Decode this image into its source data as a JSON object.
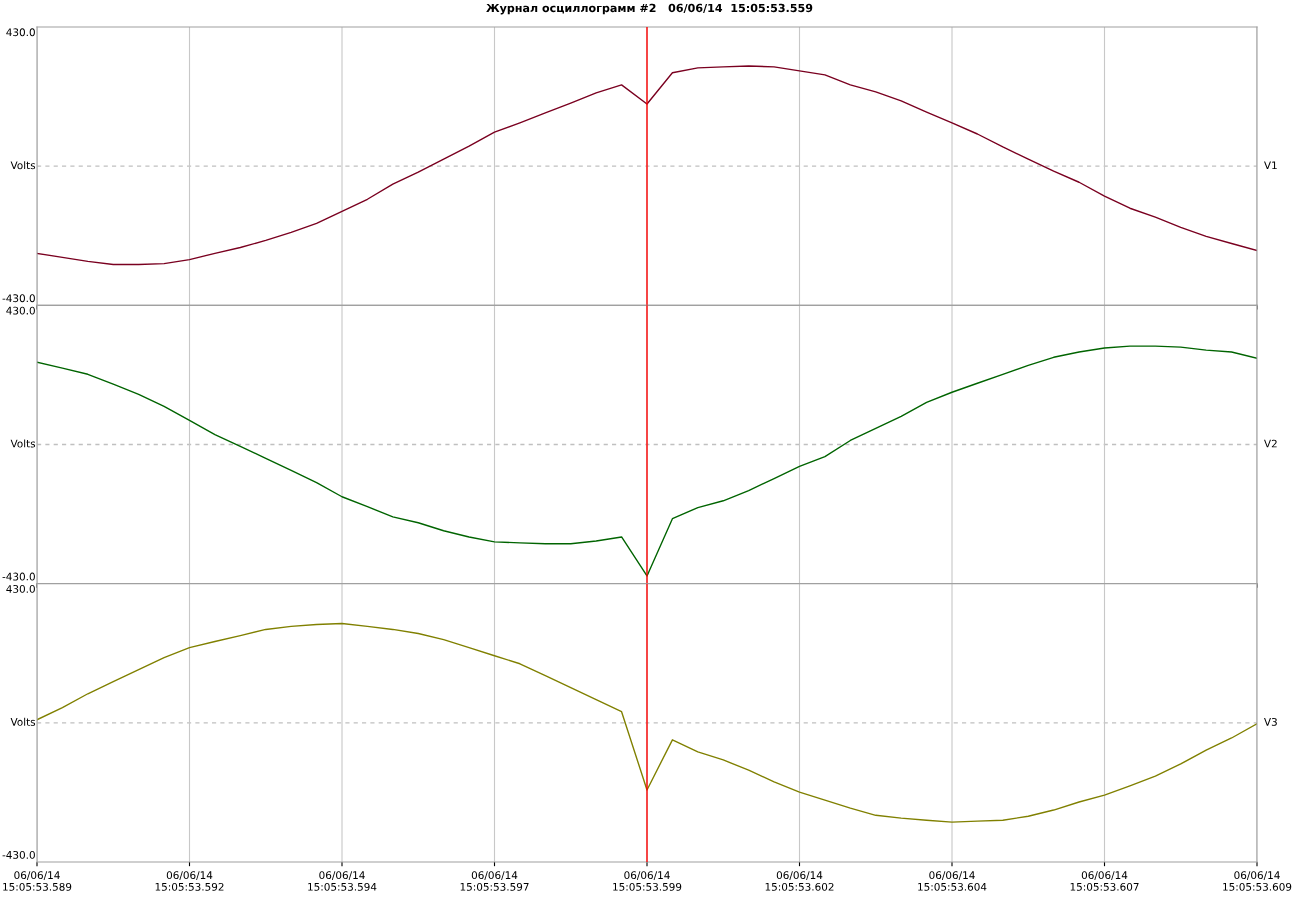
{
  "chart_data": [
    {
      "type": "line",
      "title": "Журнал осциллограмм #2   06/06/14  15:05:53.559",
      "categories": [
        "06/06/14\n15:05:53.589",
        null,
        null,
        null,
        null,
        null,
        "06/06/14\n15:05:53.592",
        null,
        null,
        null,
        null,
        null,
        "06/06/14\n15:05:53.594",
        null,
        null,
        null,
        null,
        null,
        "06/06/14\n15:05:53.597",
        null,
        null,
        null,
        null,
        null,
        "06/06/14\n15:05:53.599",
        null,
        null,
        null,
        null,
        null,
        "06/06/14\n15:05:53.602",
        null,
        null,
        null,
        null,
        null,
        "06/06/14\n15:05:53.604",
        null,
        null,
        null,
        null,
        null,
        "06/06/14\n15:05:53.607",
        null,
        null,
        null,
        null,
        null,
        "06/06/14\n15:05:53.609"
      ],
      "series": [
        {
          "name": "V1",
          "color": "#7a0020",
          "values": [
            -282,
            -295,
            -308,
            -318,
            -318,
            -315,
            -302,
            -282,
            -263,
            -240,
            -214,
            -185,
            -146,
            -107,
            -58,
            -19,
            23,
            65,
            110,
            140,
            172,
            204,
            237,
            263,
            201,
            302,
            318,
            321,
            324,
            321,
            308,
            295,
            263,
            240,
            211,
            175,
            140,
            104,
            62,
            23,
            -16,
            -52,
            -97,
            -136,
            -165,
            -198,
            -227,
            -250,
            -273
          ]
        }
      ],
      "ylim": [
        -450,
        450
      ],
      "yticks": [
        {
          "value": -430,
          "label": "-430.0"
        },
        {
          "value": 0,
          "label": "Volts"
        },
        {
          "value": 430,
          "label": "430.0"
        }
      ],
      "grid": "x",
      "tick_labels": "y",
      "ref_lines": [
        {
          "axis": "y",
          "value": 0,
          "line_style": "dashed",
          "color": "#c0c0c0"
        },
        {
          "axis": "x",
          "value": "06/06/14\n15:05:53.599",
          "color": "#ff0000"
        }
      ]
    },
    {
      "type": "line",
      "categories": [
        "06/06/14\n15:05:53.589",
        null,
        null,
        null,
        null,
        null,
        "06/06/14\n15:05:53.592",
        null,
        null,
        null,
        null,
        null,
        "06/06/14\n15:05:53.594",
        null,
        null,
        null,
        null,
        null,
        "06/06/14\n15:05:53.597",
        null,
        null,
        null,
        null,
        null,
        "06/06/14\n15:05:53.599",
        null,
        null,
        null,
        null,
        null,
        "06/06/14\n15:05:53.602",
        null,
        null,
        null,
        null,
        null,
        "06/06/14\n15:05:53.604",
        null,
        null,
        null,
        null,
        null,
        "06/06/14\n15:05:53.607",
        null,
        null,
        null,
        null,
        null,
        "06/06/14\n15:05:53.609"
      ],
      "series": [
        {
          "name": "V2",
          "color": "#006400",
          "values": [
            266,
            247,
            227,
            195,
            162,
            123,
            78,
            32,
            -6,
            -45,
            -84,
            -123,
            -169,
            -201,
            -234,
            -253,
            -279,
            -299,
            -315,
            -318,
            -321,
            -321,
            -312,
            -299,
            -425,
            -240,
            -204,
            -182,
            -149,
            -110,
            -71,
            -39,
            13,
            52,
            91,
            136,
            169,
            198,
            227,
            256,
            282,
            299,
            312,
            318,
            318,
            315,
            305,
            299,
            279
          ]
        }
      ],
      "ylim": [
        -450,
        450
      ],
      "yticks": [
        {
          "value": -430,
          "label": "-430.0"
        },
        {
          "value": 0,
          "label": "Volts"
        },
        {
          "value": 430,
          "label": "430.0"
        }
      ],
      "grid": "x",
      "tick_labels": "y",
      "ref_lines": [
        {
          "axis": "y",
          "value": 0,
          "line_style": "dashed",
          "color": "#c0c0c0"
        },
        {
          "axis": "x",
          "value": "06/06/14\n15:05:53.599",
          "color": "#ff0000"
        }
      ]
    },
    {
      "type": "line",
      "categories": [
        "06/06/14\n15:05:53.589",
        null,
        null,
        null,
        null,
        null,
        "06/06/14\n15:05:53.592",
        null,
        null,
        null,
        null,
        null,
        "06/06/14\n15:05:53.594",
        null,
        null,
        null,
        null,
        null,
        "06/06/14\n15:05:53.597",
        null,
        null,
        null,
        null,
        null,
        "06/06/14\n15:05:53.599",
        null,
        null,
        null,
        null,
        null,
        "06/06/14\n15:05:53.602",
        null,
        null,
        null,
        null,
        null,
        "06/06/14\n15:05:53.604",
        null,
        null,
        null,
        null,
        null,
        "06/06/14\n15:05:53.607",
        null,
        null,
        null,
        null,
        null,
        "06/06/14\n15:05:53.609"
      ],
      "series": [
        {
          "name": "V3",
          "color": "#808000",
          "values": [
            10,
            49,
            94,
            133,
            172,
            211,
            243,
            263,
            282,
            302,
            312,
            318,
            321,
            312,
            302,
            289,
            269,
            243,
            217,
            191,
            153,
            114,
            75,
            36,
            -217,
            -55,
            -94,
            -120,
            -153,
            -191,
            -224,
            -250,
            -276,
            -299,
            -308,
            -315,
            -321,
            -318,
            -315,
            -302,
            -282,
            -256,
            -234,
            -204,
            -172,
            -133,
            -88,
            -49,
            -3
          ]
        }
      ],
      "ylim": [
        -450,
        450
      ],
      "yticks": [
        {
          "value": -430,
          "label": "-430.0"
        },
        {
          "value": 0,
          "label": "Volts"
        },
        {
          "value": 430,
          "label": "430.0"
        }
      ],
      "grid": "x",
      "ref_lines": [
        {
          "axis": "y",
          "value": 0,
          "line_style": "dashed",
          "color": "#c0c0c0"
        },
        {
          "axis": "x",
          "value": "06/06/14\n15:05:53.599",
          "color": "#ff0000"
        }
      ]
    }
  ]
}
